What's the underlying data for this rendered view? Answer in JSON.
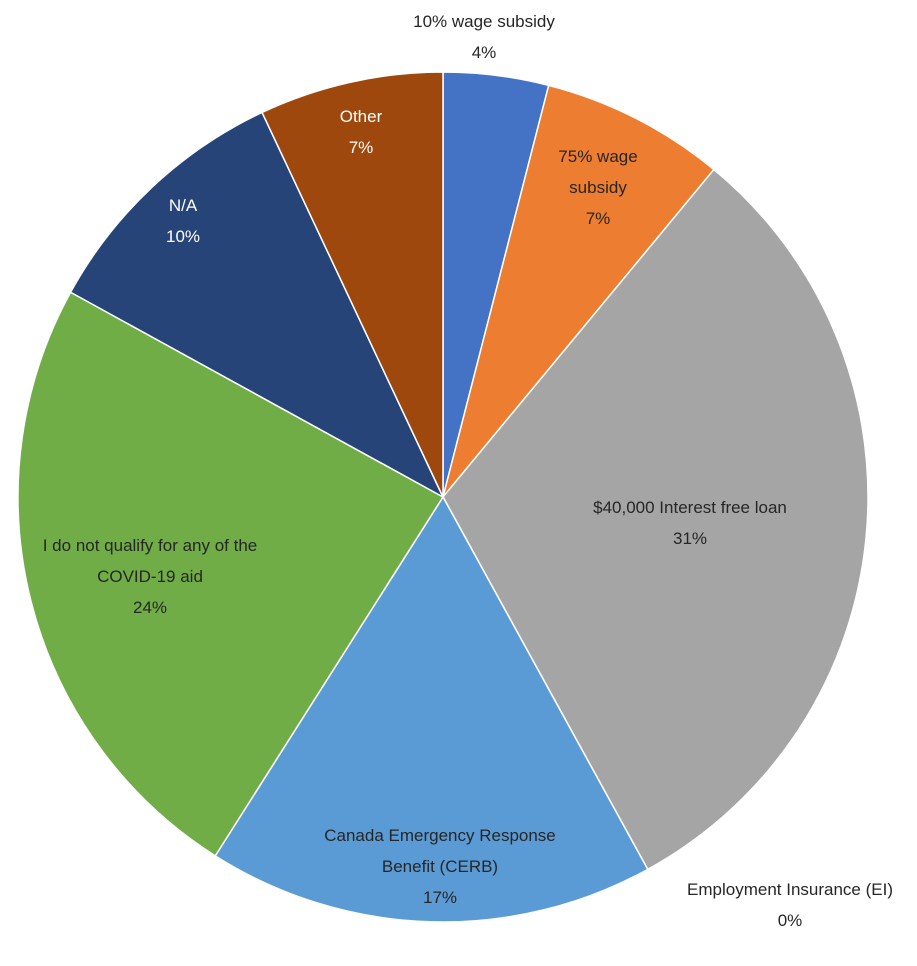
{
  "chart_data": {
    "type": "pie",
    "categories": [
      "10% wage subsidy",
      "75% wage subsidy",
      "$40,000 Interest free loan",
      "Employment Insurance (EI)",
      "Canada Emergency Response Benefit (CERB)",
      "I do not qualify for any of the COVID-19 aid",
      "N/A",
      "Other"
    ],
    "values": [
      4,
      7,
      31,
      0,
      17,
      24,
      10,
      7
    ],
    "value_labels": [
      "4%",
      "7%",
      "31%",
      "0%",
      "17%",
      "24%",
      "10%",
      "7%"
    ],
    "colors": [
      "#4472c4",
      "#ed7d31",
      "#a5a5a5",
      "#ffc000",
      "#5b9bd5",
      "#70ad47",
      "#264478",
      "#9e480e"
    ]
  }
}
